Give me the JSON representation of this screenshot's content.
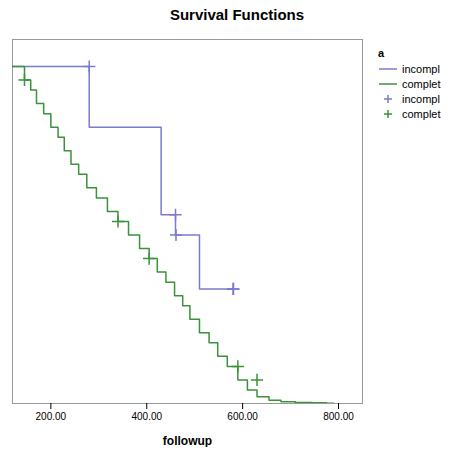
{
  "chart_data": {
    "type": "line",
    "title": "Survival Functions",
    "xlabel": "followup",
    "xlim": [
      120,
      850
    ],
    "ylim": [
      0.0,
      1.08
    ],
    "xticks": [
      {
        "value": 200.0,
        "label": "200.00"
      },
      {
        "value": 400.0,
        "label": "400.00"
      },
      {
        "value": 600.0,
        "label": "600.00"
      },
      {
        "value": 800.0,
        "label": "800.00"
      }
    ],
    "yticks": [],
    "tick_labels": "x",
    "grid": false,
    "legend": "right",
    "legend_title": "a",
    "series": [
      {
        "name": "incompl",
        "type": "step",
        "color": "#7b7bcc",
        "x": [
          120,
          280,
          280,
          430,
          430,
          460,
          460,
          510,
          510,
          580,
          580
        ],
        "values": [
          1.0,
          1.0,
          0.82,
          0.82,
          0.56,
          0.56,
          0.5,
          0.5,
          0.34,
          0.34,
          0.34
        ]
      },
      {
        "name": "complet",
        "type": "step",
        "color": "#3a923a",
        "x": [
          120,
          145,
          145,
          158,
          158,
          170,
          170,
          185,
          185,
          200,
          200,
          215,
          215,
          228,
          228,
          242,
          242,
          258,
          258,
          275,
          275,
          295,
          295,
          318,
          318,
          340,
          340,
          362,
          362,
          385,
          385,
          405,
          405,
          422,
          422,
          440,
          440,
          458,
          458,
          475,
          475,
          490,
          490,
          510,
          510,
          530,
          530,
          548,
          548,
          568,
          568,
          590,
          590,
          610,
          610,
          630,
          630,
          655,
          655,
          680,
          680,
          710,
          710,
          745,
          745,
          775,
          775,
          790,
          790
        ],
        "values": [
          1.0,
          1.0,
          0.96,
          0.96,
          0.93,
          0.93,
          0.89,
          0.89,
          0.86,
          0.86,
          0.82,
          0.82,
          0.79,
          0.79,
          0.75,
          0.75,
          0.71,
          0.71,
          0.68,
          0.68,
          0.64,
          0.64,
          0.61,
          0.61,
          0.57,
          0.57,
          0.54,
          0.54,
          0.5,
          0.5,
          0.46,
          0.46,
          0.43,
          0.43,
          0.39,
          0.39,
          0.36,
          0.36,
          0.32,
          0.32,
          0.29,
          0.29,
          0.25,
          0.25,
          0.21,
          0.21,
          0.18,
          0.18,
          0.14,
          0.14,
          0.11,
          0.11,
          0.07,
          0.07,
          0.04,
          0.04,
          0.02,
          0.02,
          0.01,
          0.01,
          0.005,
          0.005,
          0.003,
          0.003,
          0.002,
          0.002,
          0.001,
          0.001,
          0.0
        ]
      },
      {
        "name": "incompl",
        "type": "scatter",
        "marker": "+",
        "color": "#7b7bcc",
        "x": [
          280,
          460,
          461,
          580,
          581
        ],
        "values": [
          1.0,
          0.56,
          0.5,
          0.34,
          0.34
        ]
      },
      {
        "name": "complet",
        "type": "scatter",
        "marker": "+",
        "color": "#3a923a",
        "x": [
          145,
          340,
          405,
          590,
          630
        ],
        "values": [
          0.96,
          0.54,
          0.43,
          0.11,
          0.07
        ]
      }
    ]
  }
}
